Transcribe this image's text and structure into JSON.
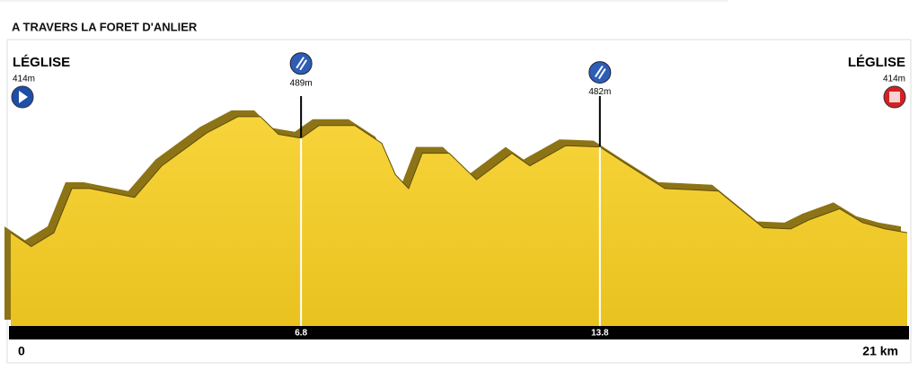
{
  "chart_data": {
    "type": "area",
    "title": "A TRAVERS LA FORET D'ANLIER",
    "x": [
      0,
      0.48,
      1.01,
      1.43,
      1.85,
      2.9,
      3.54,
      4.59,
      5.32,
      5.85,
      6.27,
      6.8,
      7.22,
      8.06,
      8.69,
      9.01,
      9.32,
      9.64,
      10.27,
      10.91,
      11.74,
      12.16,
      13.0,
      13.8,
      14.48,
      15.32,
      16.58,
      17.63,
      18.27,
      18.69,
      19.42,
      19.95,
      20.48,
      21
    ],
    "values": [
      414,
      403,
      414,
      449,
      449,
      442,
      467,
      493,
      506,
      506,
      492,
      489,
      499,
      499,
      485,
      460,
      449,
      477,
      477,
      456,
      477,
      467,
      483,
      482,
      467,
      449,
      447,
      418,
      417,
      424,
      433,
      422,
      417,
      414
    ],
    "color": "#f2cc2e",
    "xlim": [
      0,
      21
    ],
    "xticks": [
      0,
      6.8,
      13.8,
      {
        "value": 21,
        "label": "21 km"
      }
    ],
    "ylim": [
      340,
      570
    ],
    "markers": {
      "x": [
        0,
        6.8,
        13.8,
        21
      ],
      "values": [
        414,
        489,
        482,
        414
      ],
      "value_labels": [
        "414m",
        "489m",
        "482m",
        "414m"
      ],
      "names": [
        "LÉGLISE",
        null,
        null,
        "LÉGLISE"
      ]
    }
  }
}
